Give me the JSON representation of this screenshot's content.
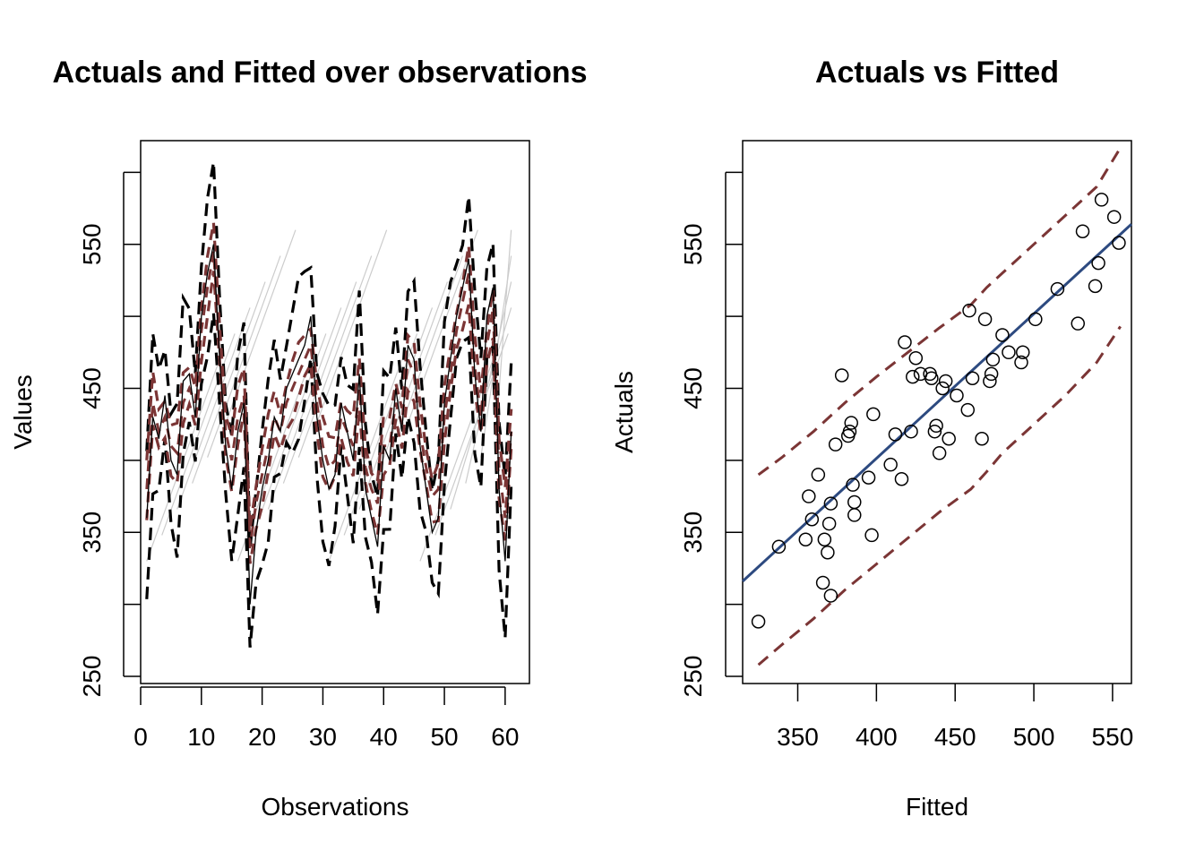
{
  "chart_data": [
    {
      "type": "line",
      "title": "Actuals and Fitted over observations",
      "xlabel": "Observations",
      "ylabel": "Values",
      "xlim": [
        0,
        64
      ],
      "ylim": [
        245,
        622
      ],
      "xticks": [
        0,
        10,
        20,
        30,
        40,
        50,
        60
      ],
      "yticks": [
        250,
        350,
        450,
        550
      ],
      "grid": false,
      "colors": {
        "actuals": "#000000",
        "fitted": "#7b3535",
        "intervals": "#000000",
        "fan": "#cccccc"
      },
      "x": [
        1,
        2,
        3,
        4,
        5,
        6,
        7,
        8,
        9,
        10,
        11,
        12,
        13,
        14,
        15,
        16,
        17,
        18,
        19,
        20,
        21,
        22,
        23,
        24,
        25,
        26,
        27,
        28,
        29,
        30,
        31,
        32,
        33,
        34,
        35,
        36,
        37,
        38,
        39,
        40,
        41,
        42,
        43,
        44,
        45,
        46,
        47,
        48,
        49,
        50,
        51,
        52,
        53,
        54,
        55,
        56,
        57,
        58,
        59,
        60,
        61
      ],
      "series": [
        {
          "values": [
            360,
            430,
            415,
            445,
            400,
            390,
            455,
            460,
            430,
            500,
            530,
            550,
            470,
            410,
            380,
            420,
            440,
            300,
            350,
            380,
            400,
            430,
            420,
            450,
            460,
            470,
            480,
            500,
            430,
            400,
            380,
            390,
            440,
            420,
            400,
            460,
            380,
            360,
            340,
            410,
            400,
            450,
            420,
            480,
            470,
            410,
            380,
            350,
            360,
            440,
            470,
            500,
            520,
            540,
            460,
            420,
            500,
            520,
            380,
            330,
            420
          ]
        },
        {
          "values": [
            380,
            440,
            420,
            430,
            410,
            405,
            440,
            450,
            440,
            490,
            520,
            545,
            480,
            420,
            400,
            430,
            445,
            340,
            370,
            390,
            410,
            430,
            420,
            440,
            450,
            460,
            470,
            480,
            440,
            410,
            395,
            400,
            430,
            420,
            410,
            450,
            395,
            380,
            370,
            410,
            410,
            440,
            425,
            470,
            460,
            420,
            395,
            375,
            380,
            430,
            460,
            490,
            510,
            530,
            465,
            430,
            480,
            505,
            395,
            360,
            420
          ]
        }
      ]
    },
    {
      "type": "scatter",
      "title": "Actuals vs Fitted",
      "xlabel": "Fitted",
      "ylabel": "Actuals",
      "xlim": [
        315,
        562
      ],
      "ylim": [
        245,
        622
      ],
      "xticks": [
        350,
        400,
        450,
        500,
        550
      ],
      "yticks": [
        250,
        350,
        450,
        550
      ],
      "grid": false,
      "colors": {
        "points": "#000000",
        "fit_line": "#2d4a80",
        "bounds": "#7b3535"
      },
      "points": [
        [
          325,
          288
        ],
        [
          338,
          340
        ],
        [
          355,
          345
        ],
        [
          357,
          375
        ],
        [
          359,
          359
        ],
        [
          363,
          390
        ],
        [
          366,
          315
        ],
        [
          367,
          345
        ],
        [
          369,
          336
        ],
        [
          370,
          356
        ],
        [
          371,
          306
        ],
        [
          371,
          370
        ],
        [
          374,
          411
        ],
        [
          378,
          459
        ],
        [
          382,
          417
        ],
        [
          383,
          420
        ],
        [
          384,
          426
        ],
        [
          385,
          383
        ],
        [
          386,
          362
        ],
        [
          386,
          371
        ],
        [
          395,
          388
        ],
        [
          397,
          348
        ],
        [
          398,
          432
        ],
        [
          409,
          397
        ],
        [
          412,
          418
        ],
        [
          416,
          387
        ],
        [
          418,
          482
        ],
        [
          422,
          420
        ],
        [
          423,
          458
        ],
        [
          425,
          471
        ],
        [
          428,
          460
        ],
        [
          434,
          460
        ],
        [
          435,
          457
        ],
        [
          437,
          420
        ],
        [
          438,
          424
        ],
        [
          440,
          405
        ],
        [
          442,
          450
        ],
        [
          444,
          455
        ],
        [
          446,
          415
        ],
        [
          451,
          445
        ],
        [
          458,
          435
        ],
        [
          459,
          504
        ],
        [
          461,
          457
        ],
        [
          467,
          415
        ],
        [
          469,
          498
        ],
        [
          472,
          455
        ],
        [
          473,
          460
        ],
        [
          474,
          470
        ],
        [
          480,
          487
        ],
        [
          484,
          475
        ],
        [
          492,
          468
        ],
        [
          493,
          475
        ],
        [
          501,
          498
        ],
        [
          515,
          519
        ],
        [
          528,
          495
        ],
        [
          531,
          559
        ],
        [
          539,
          521
        ],
        [
          541,
          537
        ],
        [
          543,
          581
        ],
        [
          551,
          569
        ],
        [
          554,
          551
        ]
      ],
      "fit_line": [
        [
          315,
          316
        ],
        [
          562,
          564
        ]
      ],
      "upper_bound": [
        [
          325,
          390
        ],
        [
          340,
          402
        ],
        [
          360,
          420
        ],
        [
          380,
          440
        ],
        [
          400,
          458
        ],
        [
          420,
          475
        ],
        [
          440,
          492
        ],
        [
          460,
          508
        ],
        [
          470,
          520
        ],
        [
          480,
          530
        ],
        [
          500,
          550
        ],
        [
          520,
          570
        ],
        [
          540,
          590
        ],
        [
          555,
          617
        ]
      ],
      "lower_bound": [
        [
          325,
          258
        ],
        [
          340,
          272
        ],
        [
          360,
          290
        ],
        [
          380,
          310
        ],
        [
          400,
          328
        ],
        [
          420,
          346
        ],
        [
          440,
          364
        ],
        [
          460,
          380
        ],
        [
          470,
          392
        ],
        [
          480,
          405
        ],
        [
          500,
          425
        ],
        [
          520,
          445
        ],
        [
          540,
          468
        ],
        [
          555,
          493
        ]
      ]
    }
  ]
}
